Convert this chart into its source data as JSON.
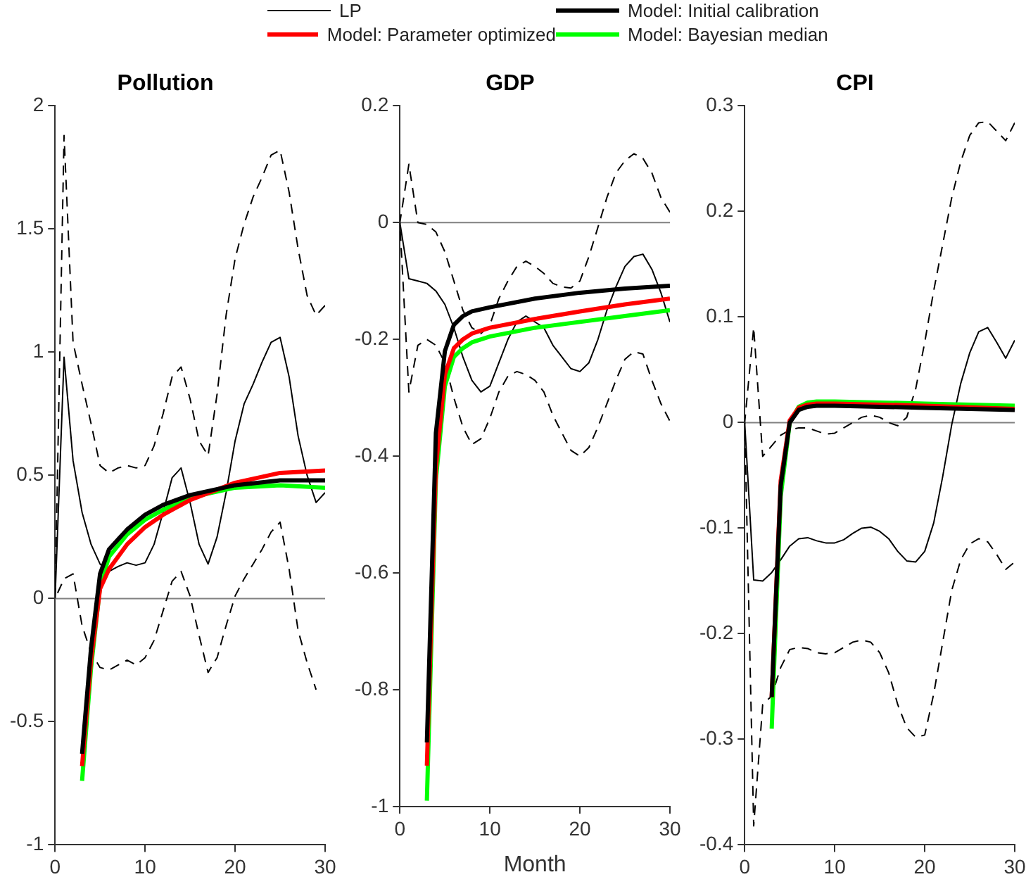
{
  "chart_data": [
    {
      "type": "line",
      "title": "Pollution",
      "legend": "top",
      "x": [
        0,
        1,
        2,
        3,
        4,
        5,
        6,
        7,
        8,
        9,
        10,
        11,
        12,
        13,
        14,
        15,
        16,
        17,
        18,
        19,
        20,
        21,
        22,
        23,
        24,
        25,
        26,
        27,
        28,
        29,
        30
      ],
      "xlim": [
        0,
        30
      ],
      "xticks": [
        0,
        10,
        20,
        30
      ],
      "ylim": [
        -1,
        2
      ],
      "yticks": [
        -1,
        -0.5,
        0,
        0.5,
        1,
        1.5,
        2
      ],
      "grid": false,
      "ref_lines": [
        {
          "axis": "y",
          "value": 0,
          "color": "#808080"
        }
      ],
      "series": [
        {
          "name": "LP",
          "color": "#000000",
          "values": [
            0,
            0.98,
            0.56,
            0.35,
            0.22,
            0.14,
            0.11,
            0.13,
            0.145,
            0.135,
            0.145,
            0.22,
            0.35,
            0.49,
            0.53,
            0.39,
            0.22,
            0.14,
            0.25,
            0.43,
            0.64,
            0.79,
            0.87,
            0.96,
            1.04,
            1.06,
            0.9,
            0.66,
            0.5,
            0.39,
            0.43
          ]
        },
        {
          "name": "Model: Initial calibration",
          "color": "#000000",
          "x": [
            3,
            4,
            5,
            6,
            8,
            10,
            12,
            15,
            20,
            25,
            30
          ],
          "values": [
            -0.63,
            -0.2,
            0.1,
            0.2,
            0.28,
            0.34,
            0.38,
            0.42,
            0.46,
            0.48,
            0.48
          ]
        },
        {
          "name": "Model: Parameter optimized",
          "color": "#ff0000",
          "x": [
            3,
            4,
            5,
            6,
            8,
            10,
            12,
            15,
            20,
            25,
            30
          ],
          "values": [
            -0.68,
            -0.25,
            0.04,
            0.12,
            0.22,
            0.29,
            0.34,
            0.4,
            0.47,
            0.51,
            0.52
          ]
        },
        {
          "name": "Model: Bayesian median",
          "color": "#00ff00",
          "x": [
            3,
            4,
            5,
            6,
            8,
            10,
            12,
            15,
            20,
            25,
            30
          ],
          "values": [
            -0.74,
            -0.28,
            0.05,
            0.17,
            0.26,
            0.32,
            0.36,
            0.41,
            0.45,
            0.46,
            0.45
          ]
        },
        {
          "color": "#000000",
          "line_style": "dashed",
          "x": [
            30,
            29,
            28,
            27,
            26,
            25,
            24,
            23,
            22,
            21,
            20,
            19,
            18,
            17,
            16,
            15,
            14,
            13,
            12,
            11,
            10,
            9,
            8,
            7,
            6,
            5,
            4,
            3,
            2,
            1,
            0,
            1,
            2,
            3,
            4,
            5,
            6,
            7,
            8,
            9,
            10,
            11,
            12,
            13,
            14,
            15,
            16,
            17,
            18,
            19,
            20,
            21,
            22,
            23,
            24,
            25,
            26,
            27,
            28,
            29
          ],
          "values": [
            1.19,
            1.15,
            1.23,
            1.42,
            1.65,
            1.82,
            1.8,
            1.71,
            1.63,
            1.52,
            1.38,
            1.15,
            0.83,
            0.58,
            0.64,
            0.81,
            0.94,
            0.9,
            0.75,
            0.62,
            0.54,
            0.53,
            0.54,
            0.53,
            0.51,
            0.54,
            0.71,
            0.87,
            1.04,
            1.88,
            0,
            0.08,
            0.1,
            -0.11,
            -0.22,
            -0.28,
            -0.29,
            -0.27,
            -0.25,
            -0.27,
            -0.24,
            -0.17,
            -0.05,
            0.07,
            0.11,
            0.01,
            -0.15,
            -0.3,
            -0.24,
            -0.11,
            0.01,
            0.08,
            0.14,
            0.2,
            0.27,
            0.31,
            0.12,
            -0.13,
            -0.26,
            -0.37
          ]
        }
      ]
    },
    {
      "type": "line",
      "title": "GDP",
      "xlabel": "Month",
      "x": [
        0,
        1,
        2,
        3,
        4,
        5,
        6,
        7,
        8,
        9,
        10,
        11,
        12,
        13,
        14,
        15,
        16,
        17,
        18,
        19,
        20,
        21,
        22,
        23,
        24,
        25,
        26,
        27,
        28,
        29,
        30
      ],
      "xlim": [
        0,
        30
      ],
      "xticks": [
        0,
        10,
        20,
        30
      ],
      "ylim": [
        -1,
        0.2
      ],
      "yticks": [
        -1,
        -0.8,
        -0.6,
        -0.4,
        -0.2,
        0,
        0.2
      ],
      "grid": false,
      "ref_lines": [
        {
          "axis": "y",
          "value": 0,
          "color": "#808080"
        }
      ],
      "series": [
        {
          "color": "#000000",
          "values": [
            0,
            -0.096,
            -0.1,
            -0.104,
            -0.117,
            -0.14,
            -0.18,
            -0.23,
            -0.27,
            -0.29,
            -0.28,
            -0.24,
            -0.2,
            -0.17,
            -0.16,
            -0.17,
            -0.18,
            -0.21,
            -0.23,
            -0.25,
            -0.255,
            -0.24,
            -0.2,
            -0.15,
            -0.11,
            -0.075,
            -0.058,
            -0.054,
            -0.08,
            -0.12,
            -0.17
          ]
        },
        {
          "color": "#000000",
          "x": [
            3,
            4,
            5,
            6,
            7,
            8,
            10,
            15,
            20,
            25,
            30
          ],
          "values": [
            -0.89,
            -0.36,
            -0.22,
            -0.175,
            -0.16,
            -0.152,
            -0.145,
            -0.13,
            -0.12,
            -0.113,
            -0.108
          ]
        },
        {
          "color": "#ff0000",
          "x": [
            3,
            4,
            5,
            6,
            7,
            8,
            10,
            15,
            20,
            25,
            30
          ],
          "values": [
            -0.93,
            -0.42,
            -0.26,
            -0.215,
            -0.2,
            -0.19,
            -0.18,
            -0.165,
            -0.152,
            -0.14,
            -0.13
          ]
        },
        {
          "color": "#00ff00",
          "x": [
            3,
            4,
            5,
            6,
            7,
            8,
            10,
            15,
            20,
            25,
            30
          ],
          "values": [
            -0.99,
            -0.44,
            -0.28,
            -0.23,
            -0.215,
            -0.205,
            -0.195,
            -0.18,
            -0.17,
            -0.16,
            -0.15
          ]
        },
        {
          "color": "#000000",
          "line_style": "dashed",
          "x": [
            30,
            29,
            28,
            27,
            26,
            25,
            24,
            23,
            22,
            21,
            20,
            19,
            18,
            17,
            16,
            15,
            14,
            13,
            12,
            11,
            10,
            9,
            8,
            7,
            6,
            5,
            4,
            3,
            2,
            1,
            0,
            1,
            2,
            3,
            4,
            5,
            6,
            7,
            8,
            9,
            10,
            11,
            12,
            13,
            14,
            15,
            16,
            17,
            18,
            19,
            20,
            21,
            22,
            23,
            24,
            25,
            26,
            27,
            28,
            29,
            30
          ],
          "values": [
            0.018,
            0.043,
            0.085,
            0.11,
            0.118,
            0.106,
            0.085,
            0.043,
            -0.008,
            -0.058,
            -0.1,
            -0.112,
            -0.11,
            -0.104,
            -0.087,
            -0.075,
            -0.066,
            -0.075,
            -0.1,
            -0.13,
            -0.175,
            -0.19,
            -0.18,
            -0.15,
            -0.1,
            -0.05,
            -0.016,
            -0.003,
            0,
            0.1,
            0,
            -0.29,
            -0.21,
            -0.2,
            -0.21,
            -0.24,
            -0.3,
            -0.35,
            -0.38,
            -0.37,
            -0.335,
            -0.29,
            -0.263,
            -0.255,
            -0.26,
            -0.27,
            -0.29,
            -0.33,
            -0.36,
            -0.39,
            -0.4,
            -0.385,
            -0.35,
            -0.31,
            -0.27,
            -0.234,
            -0.221,
            -0.225,
            -0.27,
            -0.31,
            -0.34
          ]
        }
      ]
    },
    {
      "type": "line",
      "title": "CPI",
      "x": [
        0,
        1,
        2,
        3,
        4,
        5,
        6,
        7,
        8,
        9,
        10,
        11,
        12,
        13,
        14,
        15,
        16,
        17,
        18,
        19,
        20,
        21,
        22,
        23,
        24,
        25,
        26,
        27,
        28,
        29,
        30
      ],
      "xlim": [
        0,
        30
      ],
      "xticks": [
        0,
        10,
        20,
        30
      ],
      "ylim": [
        -0.4,
        0.3
      ],
      "yticks": [
        -0.4,
        -0.3,
        -0.2,
        -0.1,
        0,
        0.1,
        0.2,
        0.3
      ],
      "grid": false,
      "ref_lines": [
        {
          "axis": "y",
          "value": 0,
          "color": "#808080"
        }
      ],
      "series": [
        {
          "color": "#000000",
          "values": [
            0,
            -0.149,
            -0.15,
            -0.142,
            -0.13,
            -0.117,
            -0.11,
            -0.109,
            -0.112,
            -0.114,
            -0.114,
            -0.111,
            -0.105,
            -0.1,
            -0.099,
            -0.103,
            -0.11,
            -0.122,
            -0.131,
            -0.132,
            -0.122,
            -0.095,
            -0.051,
            -0.002,
            0.037,
            0.066,
            0.086,
            0.09,
            0.076,
            0.061,
            0.078
          ]
        },
        {
          "color": "#000000",
          "x": [
            3,
            4,
            5,
            6,
            7,
            8,
            10,
            15,
            20,
            30
          ],
          "values": [
            -0.26,
            -0.06,
            0,
            0.012,
            0.015,
            0.016,
            0.016,
            0.015,
            0.014,
            0.012
          ]
        },
        {
          "color": "#ff0000",
          "x": [
            3,
            4,
            5,
            6,
            7,
            8,
            10,
            15,
            20,
            30
          ],
          "values": [
            -0.26,
            -0.055,
            0.002,
            0.014,
            0.017,
            0.018,
            0.018,
            0.017,
            0.016,
            0.013
          ]
        },
        {
          "color": "#00ff00",
          "x": [
            3,
            4,
            5,
            6,
            7,
            8,
            10,
            15,
            20,
            30
          ],
          "values": [
            -0.29,
            -0.07,
            0,
            0.015,
            0.019,
            0.02,
            0.02,
            0.019,
            0.018,
            0.016
          ]
        },
        {
          "color": "#000000",
          "line_style": "dashed",
          "x": [
            30,
            29,
            28,
            27,
            26,
            25,
            24,
            23,
            22,
            21,
            20,
            19,
            18,
            17,
            16,
            15,
            14,
            13,
            12,
            11,
            10,
            9,
            8,
            7,
            6,
            5,
            4,
            3,
            2,
            1,
            0,
            1,
            2,
            3,
            4,
            5,
            6,
            7,
            8,
            9,
            10,
            11,
            12,
            13,
            14,
            15,
            16,
            17,
            18,
            19,
            20,
            21,
            22,
            23,
            24,
            25,
            26,
            27,
            28,
            29,
            30
          ],
          "values": [
            0.284,
            0.267,
            0.276,
            0.285,
            0.284,
            0.272,
            0.247,
            0.213,
            0.169,
            0.125,
            0.076,
            0.032,
            0.005,
            -0.003,
            0,
            0.005,
            0.007,
            0.005,
            0,
            -0.005,
            -0.01,
            -0.011,
            -0.008,
            -0.005,
            -0.005,
            -0.007,
            -0.012,
            -0.022,
            -0.032,
            0.09,
            0,
            -0.382,
            -0.267,
            -0.259,
            -0.232,
            -0.215,
            -0.213,
            -0.214,
            -0.218,
            -0.219,
            -0.218,
            -0.213,
            -0.208,
            -0.206,
            -0.208,
            -0.218,
            -0.237,
            -0.267,
            -0.289,
            -0.298,
            -0.296,
            -0.257,
            -0.208,
            -0.159,
            -0.13,
            -0.115,
            -0.11,
            -0.113,
            -0.125,
            -0.139,
            -0.132
          ]
        }
      ]
    }
  ]
}
